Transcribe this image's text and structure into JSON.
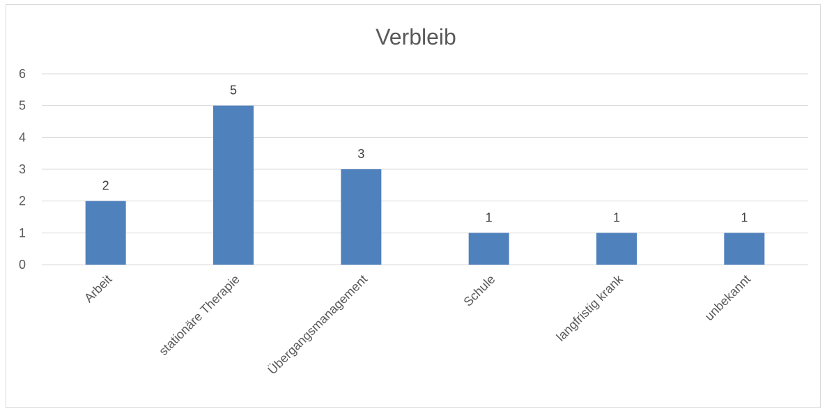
{
  "chart_data": {
    "type": "bar",
    "title": "Verbleib",
    "xlabel": "",
    "ylabel": "",
    "categories": [
      "Arbeit",
      "stationäre Therapie",
      "Übergangsmanagement",
      "Schule",
      "langfristig krank",
      "unbekannt"
    ],
    "values": [
      2,
      5,
      3,
      1,
      1,
      1
    ],
    "ylim": [
      0,
      6
    ],
    "yticks": [
      0,
      1,
      2,
      3,
      4,
      5,
      6
    ],
    "grid": true,
    "legend": "none",
    "data_labels": true,
    "colors": {
      "bar": "#4f81bd",
      "grid": "#d9d9d9",
      "text": "#595959"
    }
  }
}
